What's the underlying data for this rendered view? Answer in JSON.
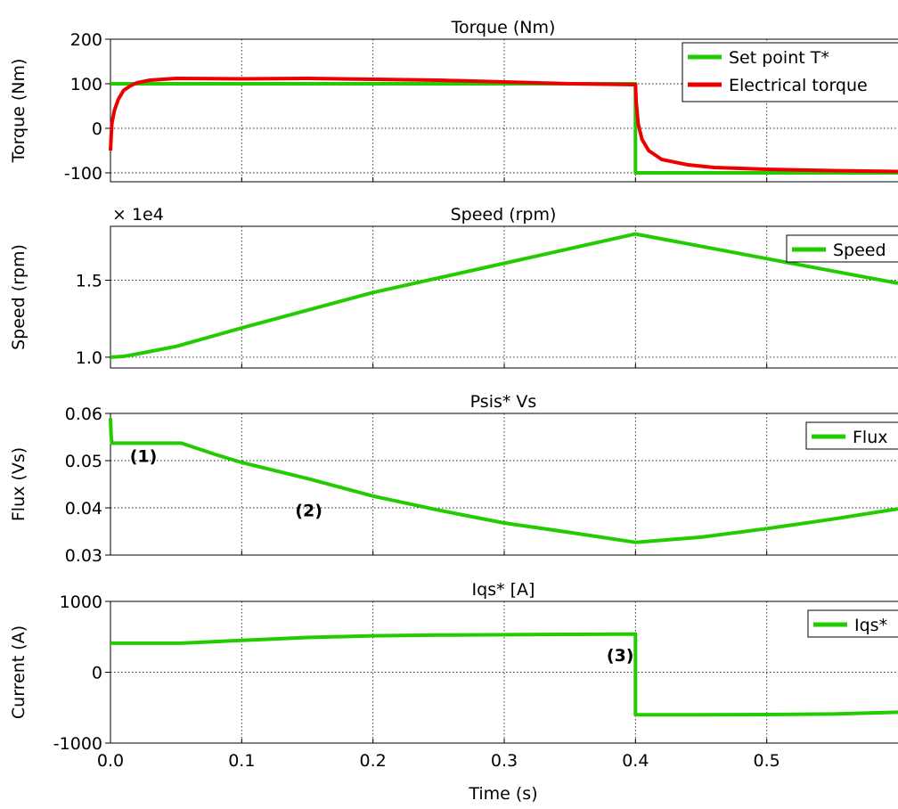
{
  "figure": {
    "xlabel": "Time (s)"
  },
  "colors": {
    "green": "#22cc00",
    "red": "#ee0000"
  },
  "chart_data": [
    {
      "type": "line",
      "title": "Torque (Nm)",
      "ylabel": "Torque (Nm)",
      "xlim": [
        0,
        0.6
      ],
      "ylim": [
        -120,
        200
      ],
      "yticks": [
        {
          "v": 200,
          "label": "200"
        },
        {
          "v": 100,
          "label": "100"
        },
        {
          "v": 0,
          "label": "0"
        },
        {
          "v": -100,
          "label": "-100"
        }
      ],
      "legend": "top-right",
      "series": [
        {
          "name": "Set point T*",
          "color": "#22cc00",
          "x": [
            0,
            0.4,
            0.4,
            0.6
          ],
          "y": [
            100,
            100,
            -100,
            -100
          ]
        },
        {
          "name": "Electrical torque",
          "color": "#ee0000",
          "x": [
            0,
            0.001,
            0.003,
            0.006,
            0.01,
            0.015,
            0.02,
            0.03,
            0.05,
            0.1,
            0.15,
            0.2,
            0.25,
            0.3,
            0.35,
            0.4,
            0.4005,
            0.402,
            0.405,
            0.41,
            0.42,
            0.44,
            0.46,
            0.5,
            0.55,
            0.6
          ],
          "y": [
            -50,
            10,
            40,
            65,
            85,
            95,
            102,
            108,
            112,
            111,
            112,
            110,
            108,
            104,
            100,
            98,
            60,
            10,
            -25,
            -50,
            -70,
            -82,
            -88,
            -92,
            -95,
            -97
          ]
        }
      ]
    },
    {
      "type": "line",
      "title": "Speed (rpm)",
      "ylabel": "Speed (rpm)",
      "scale_note": "× 1e4",
      "xlim": [
        0,
        0.6
      ],
      "ylim": [
        0.93,
        1.85
      ],
      "yticks": [
        {
          "v": 1.5,
          "label": "1.5"
        },
        {
          "v": 1.0,
          "label": "1.0"
        }
      ],
      "legend": "top-right",
      "series": [
        {
          "name": "Speed",
          "color": "#22cc00",
          "x": [
            0,
            0.01,
            0.02,
            0.05,
            0.1,
            0.2,
            0.3,
            0.4,
            0.5,
            0.6
          ],
          "y": [
            1.0,
            1.005,
            1.02,
            1.07,
            1.19,
            1.42,
            1.61,
            1.8,
            1.64,
            1.48
          ]
        }
      ]
    },
    {
      "type": "line",
      "title": "Psis* Vs",
      "ylabel": "Flux (Vs)",
      "xlim": [
        0,
        0.6
      ],
      "ylim": [
        0.03,
        0.06
      ],
      "yticks": [
        {
          "v": 0.06,
          "label": "0.06"
        },
        {
          "v": 0.05,
          "label": "0.05"
        },
        {
          "v": 0.04,
          "label": "0.04"
        },
        {
          "v": 0.03,
          "label": "0.03"
        }
      ],
      "legend": "top-right",
      "annotations": [
        {
          "text": "(1)",
          "x": 0.008,
          "y": 0.0512
        },
        {
          "text": "(2)",
          "x": 0.1,
          "y": 0.0405
        },
        {
          "text": "(3)",
          "x": 0.378,
          "y": 0.0
        }
      ],
      "series": [
        {
          "name": "Flux",
          "color": "#22cc00",
          "x": [
            0,
            0.0005,
            0.001,
            0.054,
            0.08,
            0.1,
            0.15,
            0.2,
            0.25,
            0.3,
            0.35,
            0.4,
            0.45,
            0.5,
            0.55,
            0.6
          ],
          "y": [
            0.059,
            0.0555,
            0.0537,
            0.0537,
            0.0513,
            0.0496,
            0.0462,
            0.0425,
            0.0395,
            0.0368,
            0.0348,
            0.0327,
            0.0338,
            0.0356,
            0.0376,
            0.0398
          ]
        }
      ]
    },
    {
      "type": "line",
      "title": "Iqs* [A]",
      "ylabel": "Current (A)",
      "xlim": [
        0,
        0.6
      ],
      "ylim": [
        -1000,
        1000
      ],
      "yticks": [
        {
          "v": 1000,
          "label": "1000"
        },
        {
          "v": 0,
          "label": "0"
        },
        {
          "v": -1000,
          "label": "-1000"
        }
      ],
      "xticks": [
        {
          "v": 0,
          "label": "0.0"
        },
        {
          "v": 0.1,
          "label": "0.1"
        },
        {
          "v": 0.2,
          "label": "0.2"
        },
        {
          "v": 0.3,
          "label": "0.3"
        },
        {
          "v": 0.4,
          "label": "0.4"
        },
        {
          "v": 0.5,
          "label": "0.5"
        }
      ],
      "legend": "top-right",
      "series": [
        {
          "name": "Iqs*",
          "color": "#22cc00",
          "x": [
            0,
            0.054,
            0.1,
            0.15,
            0.2,
            0.25,
            0.3,
            0.35,
            0.4,
            0.4,
            0.45,
            0.5,
            0.55,
            0.6
          ],
          "y": [
            410,
            410,
            450,
            490,
            515,
            525,
            530,
            535,
            540,
            -600,
            -600,
            -598,
            -590,
            -565
          ]
        }
      ]
    }
  ]
}
